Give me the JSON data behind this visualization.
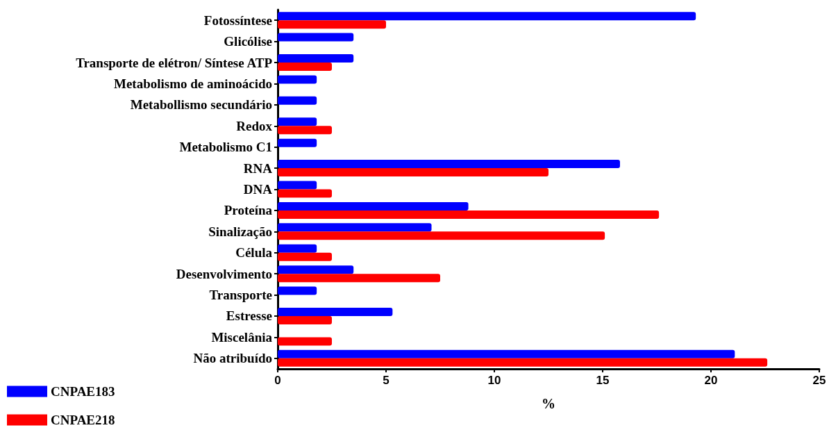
{
  "chart_data": {
    "type": "bar",
    "orientation": "horizontal",
    "xlabel": "%",
    "categories": [
      "Fotossíntese",
      "Glicólise",
      "Transporte de elétron/ Síntese ATP",
      "Metabolismo de aminoácido",
      "Metabollismo secundário",
      "Redox",
      "Metabolismo C1",
      "RNA",
      "DNA",
      "Proteína",
      "Sinalização",
      "Célula",
      "Desenvolvimento",
      "Transporte",
      "Estresse",
      "Miscelânia",
      "Não atribuído"
    ],
    "series": [
      {
        "name": "CNPAE183",
        "color": "#0000ff",
        "values": [
          19.3,
          3.5,
          3.5,
          1.8,
          1.8,
          1.8,
          1.8,
          15.8,
          1.8,
          8.8,
          7.1,
          1.8,
          3.5,
          1.8,
          5.3,
          0,
          21.1
        ]
      },
      {
        "name": "CNPAE218",
        "color": "#ff0000",
        "values": [
          5.0,
          0,
          2.5,
          0,
          0,
          2.5,
          0,
          12.5,
          2.5,
          17.6,
          15.1,
          2.5,
          7.5,
          0,
          2.5,
          2.5,
          22.6
        ]
      }
    ],
    "xlim": [
      0,
      25
    ],
    "xticks": [
      0,
      5,
      10,
      15,
      20,
      25
    ],
    "grid": false,
    "legend": "bottom left"
  }
}
